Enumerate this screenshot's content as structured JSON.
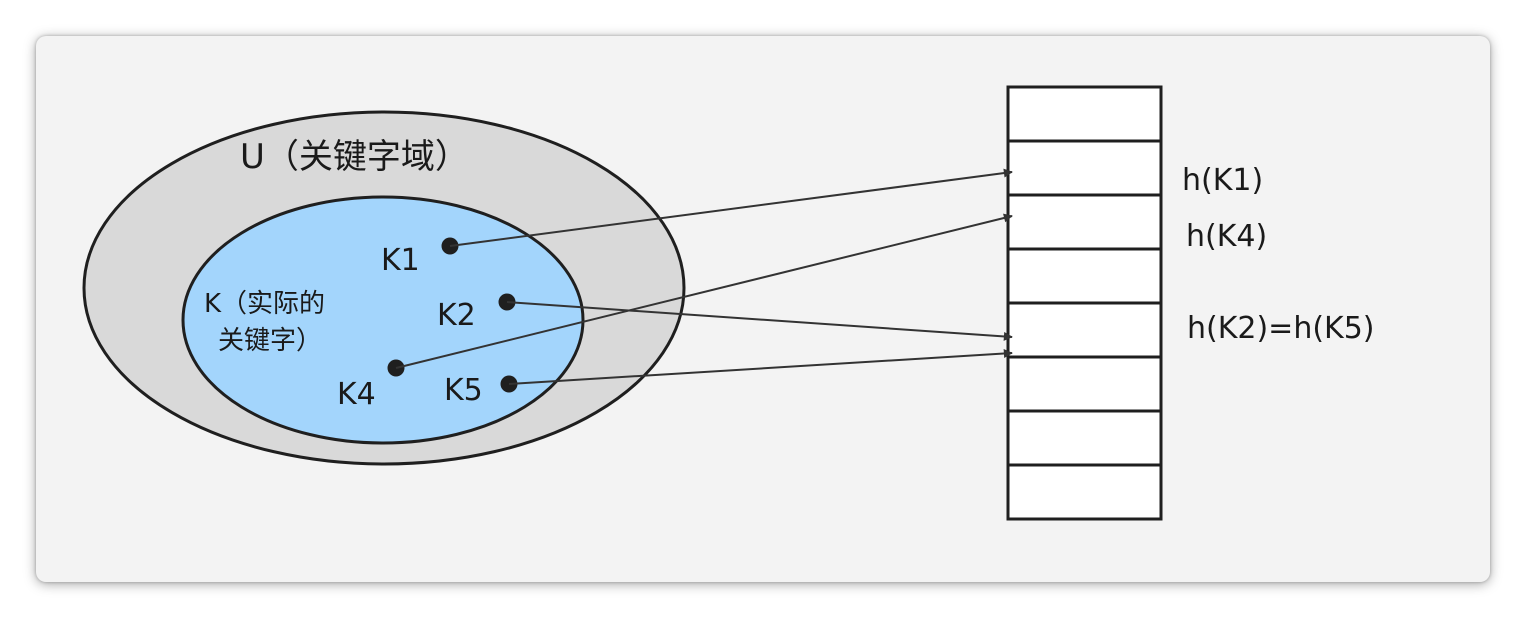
{
  "universe": {
    "label": "U（关键字域）",
    "fill": "#d9d9d9"
  },
  "actual_keys": {
    "label_line1": "K（实际的",
    "label_line2": "关键字）",
    "fill": "#a3d5fc"
  },
  "keys": [
    {
      "id": "K1",
      "label": "K1"
    },
    {
      "id": "K2",
      "label": "K2"
    },
    {
      "id": "K4",
      "label": "K4"
    },
    {
      "id": "K5",
      "label": "K5"
    }
  ],
  "table": {
    "slot_count": 8
  },
  "hash_labels": [
    {
      "text": "h(K1)"
    },
    {
      "text": "h(K4)"
    },
    {
      "text": "h(K2)=h(K5)"
    }
  ],
  "colors": {
    "stroke": "#1f1f1f",
    "arrow": "#333333",
    "table_fill": "#ffffff"
  }
}
